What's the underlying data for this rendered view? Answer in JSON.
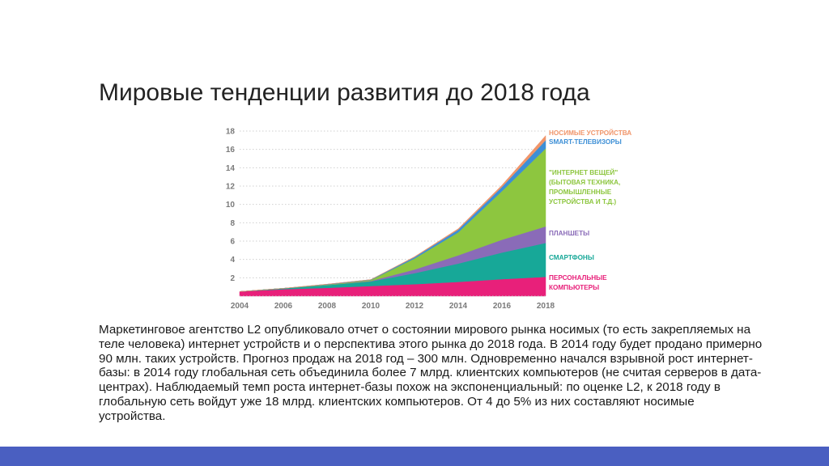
{
  "slide": {
    "title": "Мировые тенденции развития до 2018 года",
    "body": "Маркетинговое агентство L2 опубликовало отчет о состоянии мирового рынка носимых (то есть закрепляемых на теле человека) интернет устройств и о перспектива этого рынка до 2018 года. В 2014 году будет продано примерно 90 млн. таких устройств. Прогноз продаж на 2018 год – 300 млн. Одновременно начался взрывной рост интернет-базы: в 2014 году глобальная сеть объединила более 7 млрд. клиентских компьютеров (не считая серверов в дата-центрах). Наблюдаемый темп роста интернет-базы похож на экспоненциальный: по оценке L2, к 2018 году в глобальную сеть войдут уже 18 млрд. клиентских компьютеров. От 4 до 5% из них составляют носимые устройства."
  },
  "colors": {
    "footer": "#4a5fc1"
  },
  "chart_data": {
    "type": "area",
    "stacked": true,
    "x": [
      2004,
      2006,
      2008,
      2010,
      2012,
      2014,
      2016,
      2018
    ],
    "xlim": [
      2004,
      2018
    ],
    "ylim": [
      0,
      18
    ],
    "yticks": [
      2,
      4,
      6,
      8,
      10,
      12,
      14,
      16,
      18
    ],
    "xticks": [
      2004,
      2006,
      2008,
      2010,
      2012,
      2014,
      2016,
      2018
    ],
    "grid": "horizontal dotted",
    "legend": "right, labels aligned to areas",
    "series": [
      {
        "name": "ПЕРСОНАЛЬНЫЕ КОМПЬЮТЕРЫ",
        "color": "#e8207a",
        "values": [
          0.5,
          0.75,
          0.9,
          1.1,
          1.3,
          1.55,
          1.85,
          2.1
        ]
      },
      {
        "name": "СМАРТФОНЫ",
        "color": "#17a898",
        "values": [
          0.0,
          0.1,
          0.3,
          0.5,
          1.2,
          2.0,
          2.9,
          3.7
        ]
      },
      {
        "name": "ПЛАНШЕТЫ",
        "color": "#8a6bb8",
        "values": [
          0.0,
          0.0,
          0.0,
          0.05,
          0.4,
          0.9,
          1.4,
          1.8
        ]
      },
      {
        "name": "\"ИНТЕРНЕТ ВЕЩЕЙ\" (БЫТОВАЯ ТЕХНИКА, ПРОМЫШЛЕННЫЕ УСТРОЙСТВА И Т.Д.)",
        "color": "#8dc63f",
        "values": [
          0.0,
          0.0,
          0.05,
          0.1,
          1.2,
          2.5,
          5.3,
          8.5
        ]
      },
      {
        "name": "SMART-ТЕЛЕВИЗОРЫ",
        "color": "#3d8fd6",
        "values": [
          0.0,
          0.0,
          0.05,
          0.05,
          0.15,
          0.3,
          0.45,
          0.9
        ]
      },
      {
        "name": "НОСИМЫЕ УСТРОЙСТВА",
        "color": "#f0956a",
        "values": [
          0.0,
          0.0,
          0.0,
          0.0,
          0.05,
          0.1,
          0.2,
          0.5
        ]
      }
    ]
  }
}
